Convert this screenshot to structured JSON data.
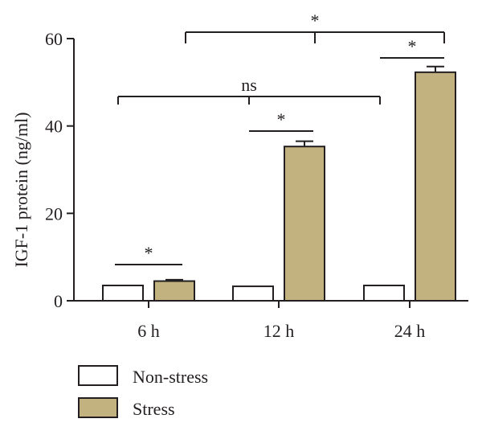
{
  "chart_data": {
    "type": "bar",
    "categories": [
      "6 h",
      "12 h",
      "24 h"
    ],
    "series": [
      {
        "name": "Non-stress",
        "values": [
          3.5,
          3.3,
          3.5
        ],
        "errors": [
          0,
          0,
          0
        ],
        "color": "#ffffff"
      },
      {
        "name": "Stress",
        "values": [
          4.5,
          35.3,
          52.3
        ],
        "errors": [
          0.3,
          1.2,
          1.3
        ],
        "color": "#c2b280"
      }
    ],
    "xlabel": "",
    "ylabel": "IGF-1 protein (ng/ml)",
    "ylim": [
      0,
      60
    ],
    "yticks": [
      0,
      20,
      40,
      60
    ],
    "grid": false,
    "legend_position": "bottom-left",
    "annotations": [
      {
        "label": "*",
        "from": "6 h Non-stress",
        "to": "6 h Stress"
      },
      {
        "label": "*",
        "from": "12 h Non-stress",
        "to": "12 h Stress"
      },
      {
        "label": "*",
        "from": "24 h Non-stress",
        "to": "24 h Stress"
      },
      {
        "label": "ns",
        "from": "6 h",
        "to": "24 h Non-stress"
      },
      {
        "label": "*",
        "from": "6 h",
        "to": "24 h Stress"
      }
    ]
  }
}
